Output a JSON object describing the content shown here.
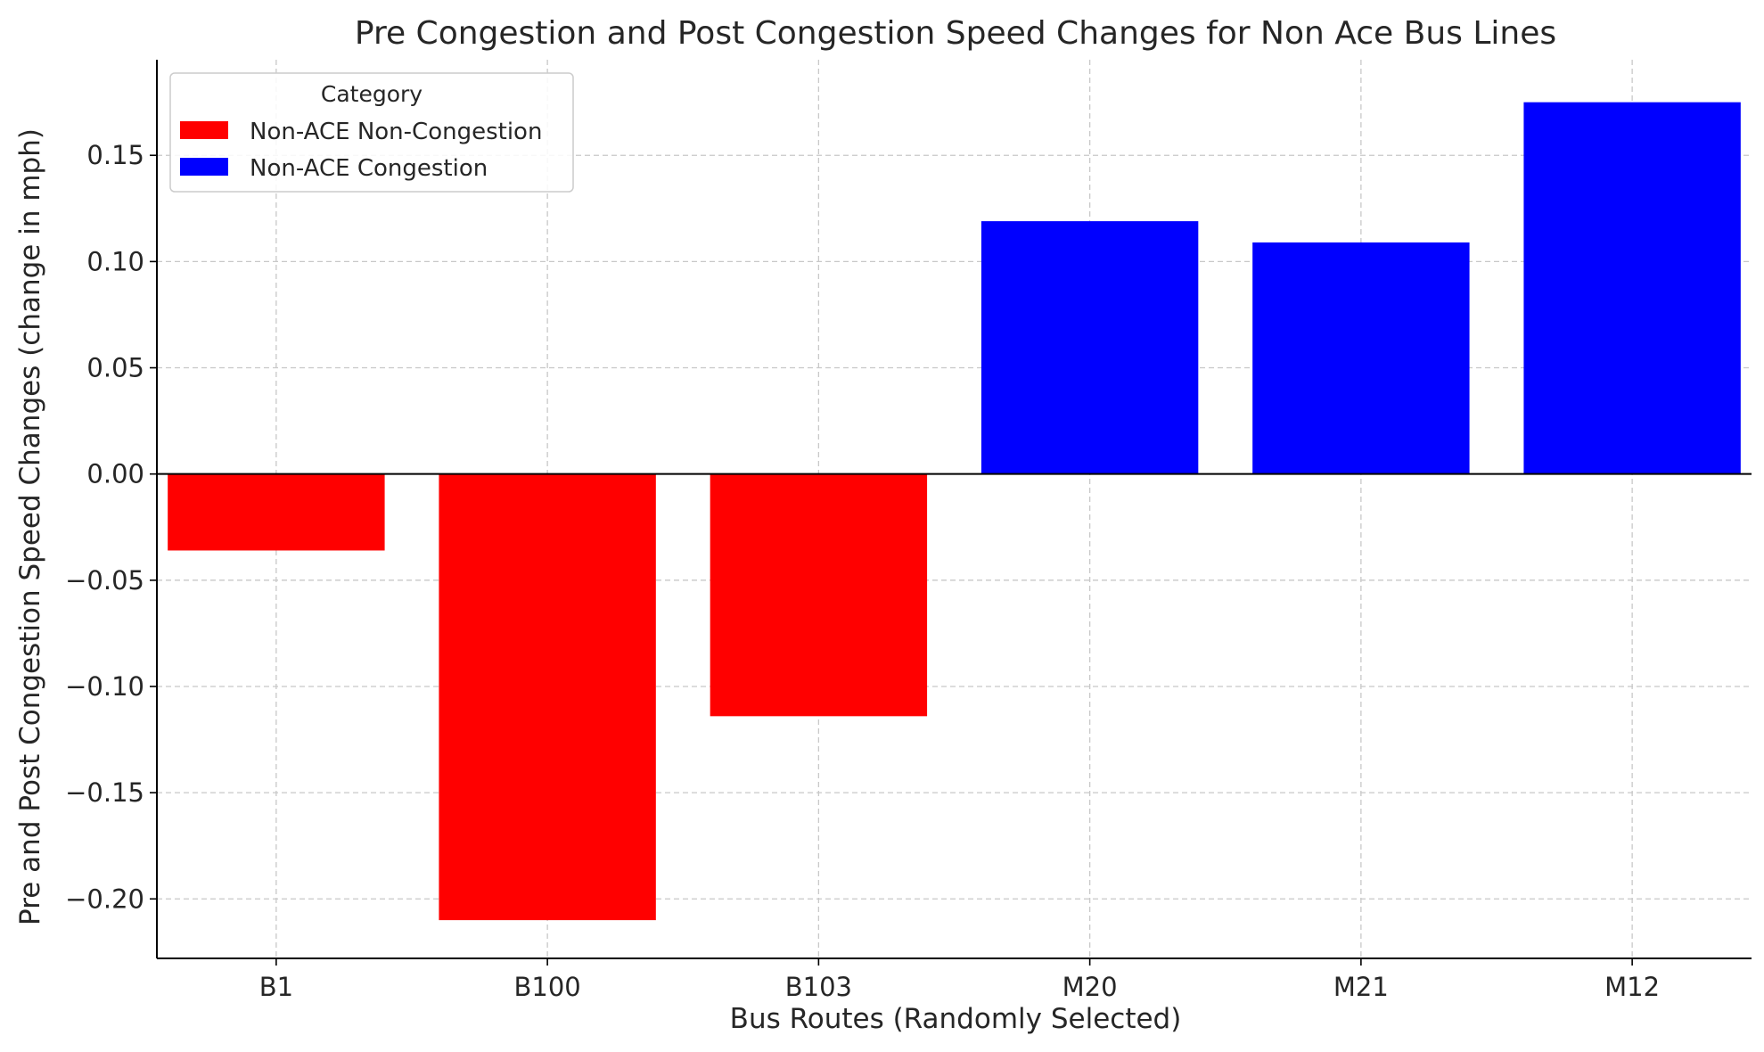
{
  "chart_data": {
    "type": "bar",
    "title": "Pre Congestion and Post Congestion Speed Changes for Non Ace Bus Lines",
    "xlabel": "Bus Routes (Randomly Selected)",
    "ylabel": "Pre and Post Congestion Speed Changes (change in mph)",
    "categories": [
      "B1",
      "B100",
      "B103",
      "M20",
      "M21",
      "M12"
    ],
    "values": [
      -0.036,
      -0.21,
      -0.114,
      0.119,
      0.109,
      0.175
    ],
    "bar_categories": [
      "Non-ACE Non-Congestion",
      "Non-ACE Non-Congestion",
      "Non-ACE Non-Congestion",
      "Non-ACE Congestion",
      "Non-ACE Congestion",
      "Non-ACE Congestion"
    ],
    "ylim": [
      -0.228,
      0.195
    ],
    "yticks": [
      -0.2,
      -0.15,
      -0.1,
      -0.05,
      0.0,
      0.05,
      0.1,
      0.15
    ],
    "ytick_labels": [
      "−0.20",
      "−0.15",
      "−0.10",
      "−0.05",
      "0.00",
      "0.05",
      "0.10",
      "0.15"
    ],
    "grid": true,
    "zero_line": true,
    "legend": {
      "title": "Category",
      "placement": "top-left",
      "entries": [
        {
          "label": "Non-ACE Non-Congestion",
          "color": "#ff0000"
        },
        {
          "label": "Non-ACE Congestion",
          "color": "#0000ff"
        }
      ]
    },
    "colors": {
      "Non-ACE Non-Congestion": "#ff0000",
      "Non-ACE Congestion": "#0000ff"
    }
  }
}
